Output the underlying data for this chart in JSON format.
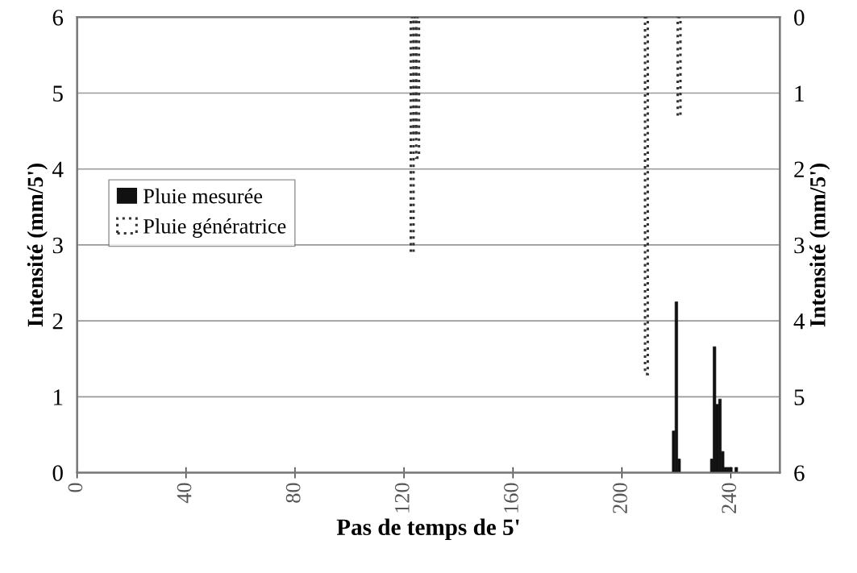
{
  "chart_data": {
    "type": "bar",
    "xlabel": "Pas de temps de 5'",
    "ylabel": "Intensité (mm/5')",
    "y2label": "Intensité (mm/5')",
    "xlim": [
      0,
      258
    ],
    "xticks": [
      0,
      40,
      80,
      120,
      160,
      200,
      240
    ],
    "ylim": [
      0,
      6
    ],
    "yticks": [
      0,
      1,
      2,
      3,
      4,
      5,
      6
    ],
    "y2lim": [
      6,
      0
    ],
    "y2ticks": [
      0,
      1,
      2,
      3,
      4,
      5,
      6
    ],
    "grid": "y",
    "legend": "left",
    "series": [
      {
        "name": "Pluie mesurée",
        "color": "#111111",
        "x": [
          219,
          220,
          221,
          233,
          234,
          235,
          236,
          237,
          238,
          239,
          240,
          242
        ],
        "values": [
          0.55,
          2.25,
          0.18,
          0.18,
          1.66,
          0.9,
          0.97,
          0.28,
          0.07,
          0.07,
          0.07,
          0.07
        ]
      },
      {
        "name": "Pluie génératrice",
        "color": "#333333",
        "axis": "y2",
        "line_style": "dotted",
        "x": [
          123,
          124,
          125,
          209,
          221
        ],
        "values": [
          3.1,
          1.55,
          1.85,
          4.7,
          1.3
        ]
      }
    ]
  }
}
